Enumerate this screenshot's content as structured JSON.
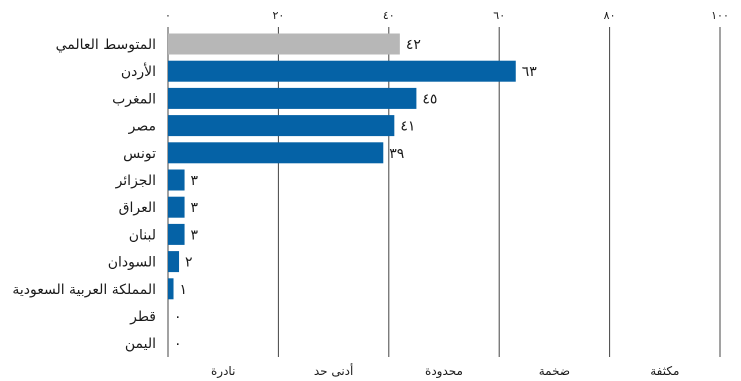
{
  "chart_data": {
    "type": "bar",
    "orientation": "horizontal",
    "categories": [
      "المتوسط العالمي",
      "الأردن",
      "المغرب",
      "مصر",
      "تونس",
      "الجزائر",
      "العراق",
      "لبنان",
      "السودان",
      "المملكة العربية السعودية",
      "قطر",
      "اليمن"
    ],
    "values": [
      42,
      63,
      45,
      41,
      39,
      3,
      3,
      3,
      2,
      1,
      0,
      0
    ],
    "value_labels": [
      "٤٢",
      "٦٣",
      "٤٥",
      "٤١",
      "٣٩",
      "٣",
      "٣",
      "٣",
      "٢",
      "١",
      "٠",
      "٠"
    ],
    "xlim": [
      0,
      100
    ],
    "x_ticks": [
      0,
      20,
      40,
      60,
      80,
      100
    ],
    "x_tick_labels": [
      "٠",
      "٢٠",
      "٤٠",
      "٦٠",
      "٨٠",
      "١٠٠"
    ],
    "bands": [
      "نادرة",
      "أدنى حد",
      "محدودة",
      "ضخمة",
      "مكثفة"
    ],
    "grid": true,
    "colors": {
      "highlight": "#b7b7b7",
      "bar": "#0562a6",
      "grid": "#444444"
    }
  }
}
